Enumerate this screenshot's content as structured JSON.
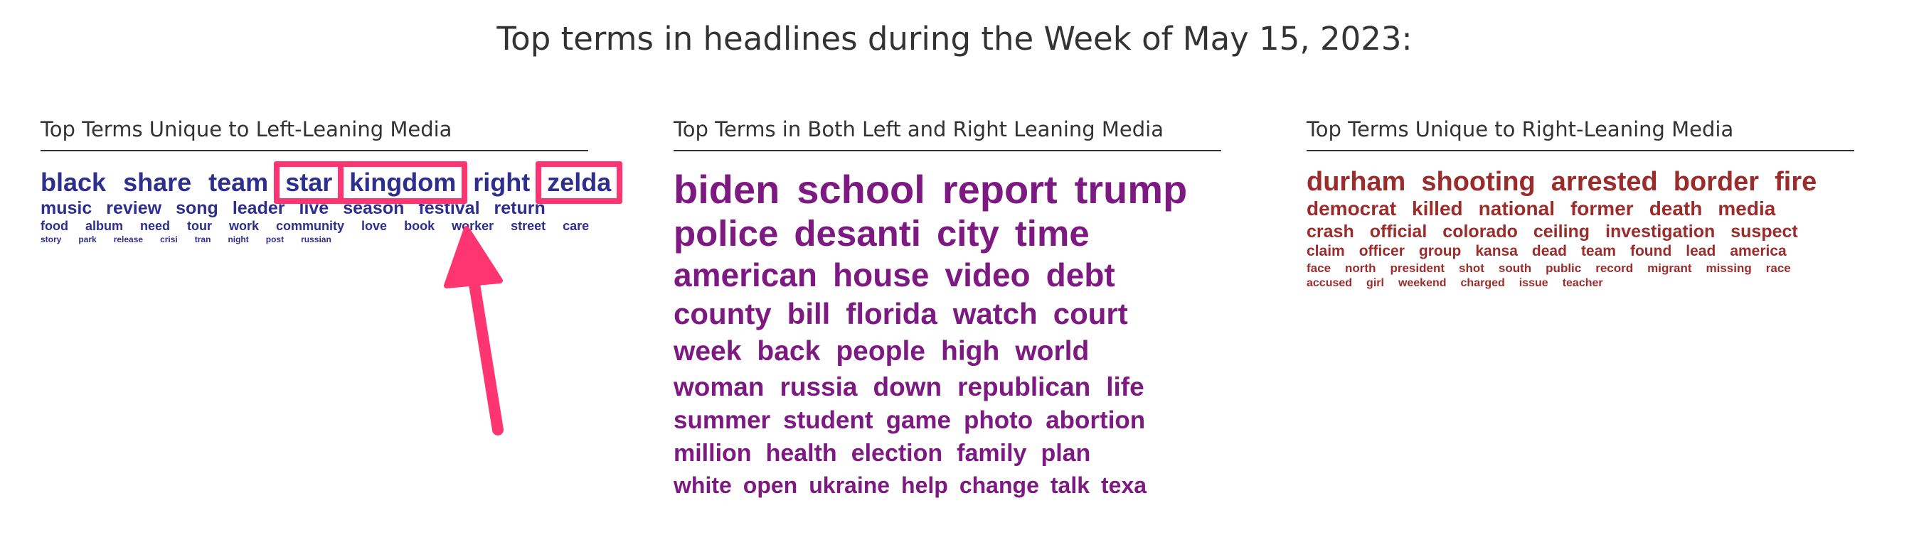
{
  "page_title": "Top terms in headlines during the Week of May 15, 2023:",
  "colors": {
    "left": "#2e2e8e",
    "both": "#7d1a82",
    "right": "#9b2c2c",
    "highlight": "#ff3572"
  },
  "left": {
    "title": "Top Terms Unique to Left-Leaning Media",
    "rows": [
      [
        "black",
        "share",
        "team",
        "star",
        "kingdom",
        "right",
        "zelda"
      ],
      [
        "music",
        "review",
        "song",
        "leader",
        "live",
        "season",
        "festival",
        "return"
      ],
      [
        "food",
        "album",
        "need",
        "tour",
        "work",
        "community",
        "love",
        "book",
        "worker",
        "street",
        "care"
      ],
      [
        "story",
        "park",
        "release",
        "crisi",
        "tran",
        "night",
        "post",
        "russian"
      ]
    ],
    "highlighted": [
      "star",
      "kingdom",
      "zelda"
    ]
  },
  "both": {
    "title": "Top Terms in Both Left and Right Leaning Media",
    "rows": [
      [
        "biden",
        "school",
        "report",
        "trump"
      ],
      [
        "police",
        "desanti",
        "city",
        "time"
      ],
      [
        "american",
        "house",
        "video",
        "debt"
      ],
      [
        "county",
        "bill",
        "florida",
        "watch",
        "court"
      ],
      [
        "week",
        "back",
        "people",
        "high",
        "world"
      ],
      [
        "woman",
        "russia",
        "down",
        "republican",
        "life"
      ],
      [
        "summer",
        "student",
        "game",
        "photo",
        "abortion"
      ],
      [
        "million",
        "health",
        "election",
        "family",
        "plan"
      ],
      [
        "white",
        "open",
        "ukraine",
        "help",
        "change",
        "talk",
        "texa"
      ]
    ]
  },
  "right": {
    "title": "Top Terms Unique to Right-Leaning Media",
    "rows": [
      [
        "durham",
        "shooting",
        "arrested",
        "border",
        "fire"
      ],
      [
        "democrat",
        "killed",
        "national",
        "former",
        "death",
        "media"
      ],
      [
        "crash",
        "official",
        "colorado",
        "ceiling",
        "investigation",
        "suspect"
      ],
      [
        "claim",
        "officer",
        "group",
        "kansa",
        "dead",
        "team",
        "found",
        "lead",
        "america"
      ],
      [
        "face",
        "north",
        "president",
        "shot",
        "south",
        "public",
        "record",
        "migrant",
        "missing",
        "race"
      ],
      [
        "accused",
        "girl",
        "weekend",
        "charged",
        "issue",
        "teacher"
      ]
    ]
  }
}
